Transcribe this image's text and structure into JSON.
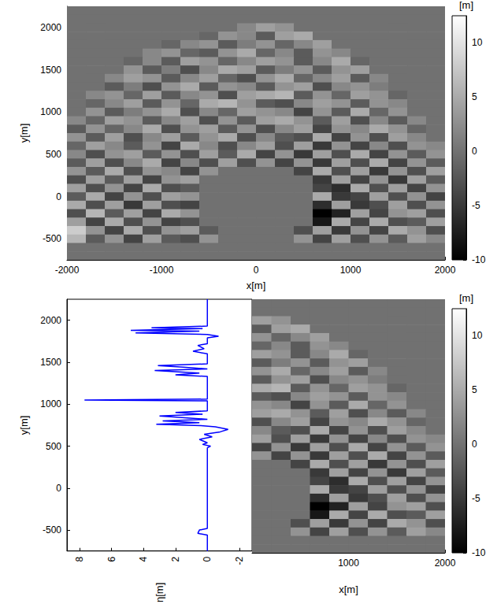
{
  "chart_data": [
    {
      "type": "heatmap",
      "x_label": "x[m]",
      "y_label": "y[m]",
      "xlim": [
        -2000,
        2000
      ],
      "xticks": [
        -2000,
        -1000,
        0,
        1000,
        2000
      ],
      "ylim": [
        -750,
        2250
      ],
      "yticks": [
        -500,
        0,
        500,
        1000,
        1500,
        2000
      ],
      "colorbar_label": "[m]",
      "colorbar_lim": [
        -10,
        12.5
      ],
      "colorbar_ticks": [
        -10,
        -5,
        0,
        5,
        10
      ],
      "cells": {
        "x": [
          -1900,
          -1700,
          -1500,
          -1300,
          -1100,
          -900,
          -700,
          -500,
          -300,
          -100,
          100,
          300,
          500,
          700,
          900,
          1100,
          1300,
          1500,
          1700,
          1900
        ],
        "y": [
          2200,
          2100,
          2000,
          1900,
          1800,
          1700,
          1600,
          1500,
          1400,
          1300,
          1200,
          1100,
          1000,
          900,
          800,
          700,
          600,
          500,
          400,
          300,
          200,
          100,
          0,
          -100,
          -200,
          -300,
          -400,
          -500,
          -600,
          -700
        ],
        "z": [
          [
            0,
            0,
            0,
            0,
            0,
            0,
            0,
            0,
            0,
            0,
            0,
            0,
            0,
            0,
            0,
            0,
            0,
            0,
            0,
            0
          ],
          [
            0,
            0,
            0,
            0,
            0,
            0,
            0,
            0,
            0,
            0,
            0,
            0,
            0,
            0,
            0,
            0,
            0,
            0,
            0,
            0
          ],
          [
            0,
            0,
            0,
            0,
            0,
            0,
            0,
            0,
            0,
            2,
            4,
            3,
            0,
            0,
            0,
            0,
            0,
            0,
            0,
            0
          ],
          [
            0,
            0,
            0,
            0,
            0,
            0,
            0,
            -1,
            3,
            2,
            -2,
            4,
            5,
            0,
            0,
            0,
            0,
            0,
            0,
            0
          ],
          [
            0,
            0,
            0,
            0,
            0,
            -1,
            2,
            3,
            -2,
            1,
            3,
            -1,
            2,
            4,
            0,
            0,
            0,
            0,
            0,
            0
          ],
          [
            0,
            0,
            0,
            0,
            2,
            3,
            -1,
            -2,
            3,
            5,
            -1,
            2,
            -2,
            3,
            2,
            0,
            0,
            0,
            0,
            0
          ],
          [
            0,
            0,
            0,
            -1,
            2,
            -2,
            4,
            3,
            -1,
            2,
            4,
            3,
            -2,
            2,
            5,
            -1,
            0,
            0,
            0,
            0
          ],
          [
            0,
            0,
            0,
            3,
            -2,
            1,
            -3,
            2,
            5,
            4,
            -2,
            1,
            3,
            -2,
            3,
            4,
            0,
            0,
            0,
            0
          ],
          [
            0,
            0,
            2,
            4,
            3,
            -2,
            2,
            4,
            -1,
            -3,
            3,
            5,
            -1,
            2,
            4,
            -2,
            2,
            0,
            0,
            0
          ],
          [
            0,
            0,
            -2,
            1,
            -3,
            3,
            5,
            -2,
            3,
            2,
            -2,
            3,
            4,
            -3,
            2,
            3,
            1,
            0,
            0,
            0
          ],
          [
            0,
            2,
            3,
            -1,
            4,
            -2,
            2,
            3,
            -3,
            4,
            5,
            6,
            -2,
            3,
            -1,
            4,
            3,
            -1,
            0,
            0
          ],
          [
            0,
            -1,
            2,
            4,
            -2,
            3,
            -1,
            5,
            6,
            3,
            -2,
            -3,
            2,
            4,
            3,
            -2,
            3,
            2,
            0,
            0
          ],
          [
            0,
            3,
            -2,
            1,
            3,
            5,
            -3,
            2,
            -1,
            4,
            3,
            2,
            -4,
            3,
            -2,
            5,
            -1,
            3,
            0,
            0
          ],
          [
            2,
            -1,
            4,
            3,
            -2,
            2,
            4,
            -3,
            3,
            -2,
            4,
            5,
            3,
            -2,
            4,
            -3,
            2,
            -2,
            2,
            0
          ],
          [
            -2,
            3,
            -1,
            2,
            5,
            -3,
            3,
            4,
            -2,
            3,
            -3,
            2,
            4,
            -4,
            3,
            2,
            5,
            3,
            -1,
            0
          ],
          [
            3,
            -2,
            4,
            -3,
            2,
            4,
            -2,
            3,
            5,
            -3,
            2,
            -2,
            -3,
            5,
            -4,
            3,
            -3,
            4,
            2,
            0
          ],
          [
            -1,
            4,
            2,
            -2,
            3,
            -4,
            5,
            2,
            -3,
            2,
            4,
            -3,
            4,
            -5,
            3,
            -4,
            2,
            -3,
            3,
            2
          ],
          [
            2,
            -3,
            3,
            4,
            -2,
            3,
            -3,
            4,
            -2,
            5,
            -4,
            3,
            -5,
            4,
            -3,
            5,
            -4,
            3,
            -2,
            3
          ],
          [
            -2,
            4,
            -3,
            2,
            5,
            -4,
            2,
            -3,
            4,
            -3,
            3,
            -4,
            3,
            -5,
            4,
            -3,
            5,
            -4,
            3,
            -2
          ],
          [
            3,
            -2,
            5,
            -3,
            3,
            2,
            -4,
            3,
            0,
            0,
            0,
            0,
            -4,
            5,
            -3,
            4,
            -5,
            3,
            -3,
            4
          ],
          [
            -3,
            4,
            -2,
            4,
            -4,
            3,
            4,
            0,
            0,
            0,
            0,
            0,
            0,
            -5,
            4,
            -4,
            3,
            -5,
            4,
            -2
          ],
          [
            4,
            -3,
            3,
            -4,
            5,
            -3,
            -2,
            0,
            0,
            0,
            0,
            0,
            0,
            -4,
            -6,
            5,
            -3,
            4,
            -4,
            3
          ],
          [
            -2,
            5,
            -4,
            3,
            -3,
            4,
            3,
            0,
            0,
            0,
            0,
            0,
            0,
            5,
            -5,
            -4,
            4,
            -3,
            3,
            -4
          ],
          [
            5,
            -3,
            4,
            -5,
            4,
            -3,
            -4,
            0,
            0,
            0,
            0,
            0,
            0,
            -6,
            4,
            -5,
            -3,
            4,
            -3,
            3
          ],
          [
            -3,
            6,
            -2,
            4,
            -4,
            5,
            3,
            0,
            0,
            0,
            0,
            0,
            0,
            -10,
            -7,
            4,
            -4,
            3,
            4,
            -3
          ],
          [
            4,
            -4,
            5,
            -3,
            3,
            -4,
            -3,
            0,
            0,
            0,
            0,
            0,
            0,
            -8,
            5,
            -4,
            5,
            -3,
            -2,
            4
          ],
          [
            8,
            3,
            -4,
            5,
            -3,
            3,
            4,
            -2,
            0,
            0,
            0,
            0,
            -3,
            4,
            -5,
            3,
            -4,
            5,
            3,
            -3
          ],
          [
            6,
            -2,
            3,
            -4,
            4,
            -2,
            -3,
            3,
            0,
            0,
            0,
            0,
            3,
            -4,
            4,
            -3,
            3,
            -2,
            4,
            2
          ],
          [
            0,
            0,
            0,
            0,
            0,
            0,
            0,
            0,
            0,
            0,
            0,
            0,
            0,
            0,
            0,
            0,
            0,
            0,
            0,
            0
          ],
          [
            0,
            0,
            0,
            0,
            0,
            0,
            0,
            0,
            0,
            0,
            0,
            0,
            0,
            0,
            0,
            0,
            0,
            0,
            0,
            0
          ]
        ]
      }
    },
    {
      "type": "heatmap",
      "x_label": "x[m]",
      "y_label": "y[m]",
      "xlim": [
        0,
        2000
      ],
      "xticks": [
        1000,
        2000
      ],
      "ylim": [
        -750,
        2250
      ],
      "yticks": [
        -500,
        0,
        500,
        1000,
        1500,
        2000
      ],
      "colorbar_label": "[m]",
      "colorbar_lim": [
        -10,
        12.5
      ],
      "colorbar_ticks": [
        -10,
        -5,
        0,
        5,
        10
      ],
      "cells": {
        "x": [
          100,
          300,
          500,
          700,
          900,
          1100,
          1300,
          1500,
          1700,
          1900
        ],
        "y": [
          2200,
          2100,
          2000,
          1900,
          1800,
          1700,
          1600,
          1500,
          1400,
          1300,
          1200,
          1100,
          1000,
          900,
          800,
          700,
          600,
          500,
          400,
          300,
          200,
          100,
          0,
          -100,
          -200,
          -300,
          -400,
          -500,
          -600,
          -700
        ],
        "z": [
          [
            0,
            0,
            0,
            0,
            0,
            0,
            0,
            0,
            0,
            0
          ],
          [
            0,
            0,
            0,
            0,
            0,
            0,
            0,
            0,
            0,
            0
          ],
          [
            4,
            3,
            0,
            0,
            0,
            0,
            0,
            0,
            0,
            0
          ],
          [
            -2,
            4,
            5,
            0,
            0,
            0,
            0,
            0,
            0,
            0
          ],
          [
            3,
            -1,
            2,
            4,
            0,
            0,
            0,
            0,
            0,
            0
          ],
          [
            -1,
            2,
            -2,
            3,
            2,
            0,
            0,
            0,
            0,
            0
          ],
          [
            4,
            3,
            -2,
            2,
            5,
            -1,
            0,
            0,
            0,
            0
          ],
          [
            -2,
            1,
            3,
            -2,
            3,
            4,
            0,
            0,
            0,
            0
          ],
          [
            3,
            5,
            -1,
            2,
            4,
            -2,
            2,
            0,
            0,
            0
          ],
          [
            -2,
            3,
            4,
            -3,
            2,
            3,
            1,
            0,
            0,
            0
          ],
          [
            5,
            6,
            -2,
            3,
            -1,
            4,
            3,
            -1,
            0,
            0
          ],
          [
            -2,
            -3,
            2,
            4,
            3,
            -2,
            3,
            2,
            0,
            0
          ],
          [
            3,
            2,
            -4,
            3,
            -2,
            5,
            -1,
            3,
            0,
            0
          ],
          [
            4,
            5,
            3,
            -2,
            4,
            -3,
            2,
            -2,
            2,
            0
          ],
          [
            -3,
            2,
            4,
            -4,
            3,
            2,
            5,
            3,
            -1,
            0
          ],
          [
            2,
            -2,
            -3,
            5,
            -4,
            3,
            -3,
            4,
            2,
            0
          ],
          [
            4,
            -3,
            4,
            -5,
            3,
            -4,
            2,
            -3,
            3,
            2
          ],
          [
            -4,
            3,
            -5,
            4,
            -3,
            5,
            -4,
            3,
            -2,
            3
          ],
          [
            3,
            -4,
            3,
            -5,
            4,
            -3,
            5,
            -4,
            3,
            -2
          ],
          [
            0,
            0,
            -4,
            5,
            -3,
            4,
            -5,
            3,
            -3,
            4
          ],
          [
            0,
            0,
            0,
            -5,
            4,
            -4,
            3,
            -5,
            4,
            -2
          ],
          [
            0,
            0,
            0,
            -4,
            -6,
            5,
            -3,
            4,
            -4,
            3
          ],
          [
            0,
            0,
            0,
            5,
            -5,
            -4,
            4,
            -3,
            3,
            -4
          ],
          [
            0,
            0,
            0,
            -6,
            4,
            -5,
            -3,
            4,
            -3,
            3
          ],
          [
            0,
            0,
            0,
            -10,
            -7,
            4,
            -4,
            3,
            4,
            -3
          ],
          [
            0,
            0,
            0,
            -8,
            5,
            -4,
            5,
            -3,
            -2,
            4
          ],
          [
            0,
            0,
            -3,
            4,
            -5,
            3,
            -4,
            5,
            3,
            -3
          ],
          [
            0,
            0,
            3,
            -4,
            4,
            -3,
            3,
            -2,
            4,
            2
          ],
          [
            0,
            0,
            0,
            0,
            0,
            0,
            0,
            0,
            0,
            0
          ],
          [
            0,
            0,
            0,
            0,
            0,
            0,
            0,
            0,
            0,
            0
          ]
        ]
      },
      "line": {
        "type": "line",
        "x_label": "η[m]",
        "color": "#0000ff",
        "xlim": [
          -2.8,
          8.8
        ],
        "xticks": [
          -2,
          0,
          2,
          4,
          6,
          8
        ],
        "x": [
          0,
          0,
          0.6,
          0.5,
          0,
          0,
          -0.2,
          0.3,
          0,
          0.5,
          -0.3,
          0.2,
          -0.8,
          -1.3,
          -0.5,
          0.4,
          3.2,
          0.5,
          2.8,
          0,
          3.0,
          0.3,
          2.0,
          0,
          0,
          7.7,
          0,
          0,
          2.0,
          0.5,
          3.3,
          0,
          1.5,
          3.1,
          0,
          0,
          0.9,
          0.2,
          0.6,
          0,
          0,
          -0.7,
          0,
          4.5,
          0.5,
          4.8,
          0.3,
          3.5,
          0,
          0
        ],
        "values": [
          -750,
          -560,
          -540,
          -500,
          -480,
          480,
          500,
          520,
          540,
          580,
          610,
          640,
          670,
          700,
          730,
          745,
          760,
          780,
          800,
          820,
          860,
          880,
          900,
          920,
          1040,
          1050,
          1060,
          1330,
          1350,
          1370,
          1400,
          1420,
          1440,
          1460,
          1480,
          1600,
          1630,
          1660,
          1700,
          1720,
          1790,
          1810,
          1830,
          1850,
          1870,
          1880,
          1900,
          1910,
          1930,
          2250
        ]
      }
    }
  ]
}
